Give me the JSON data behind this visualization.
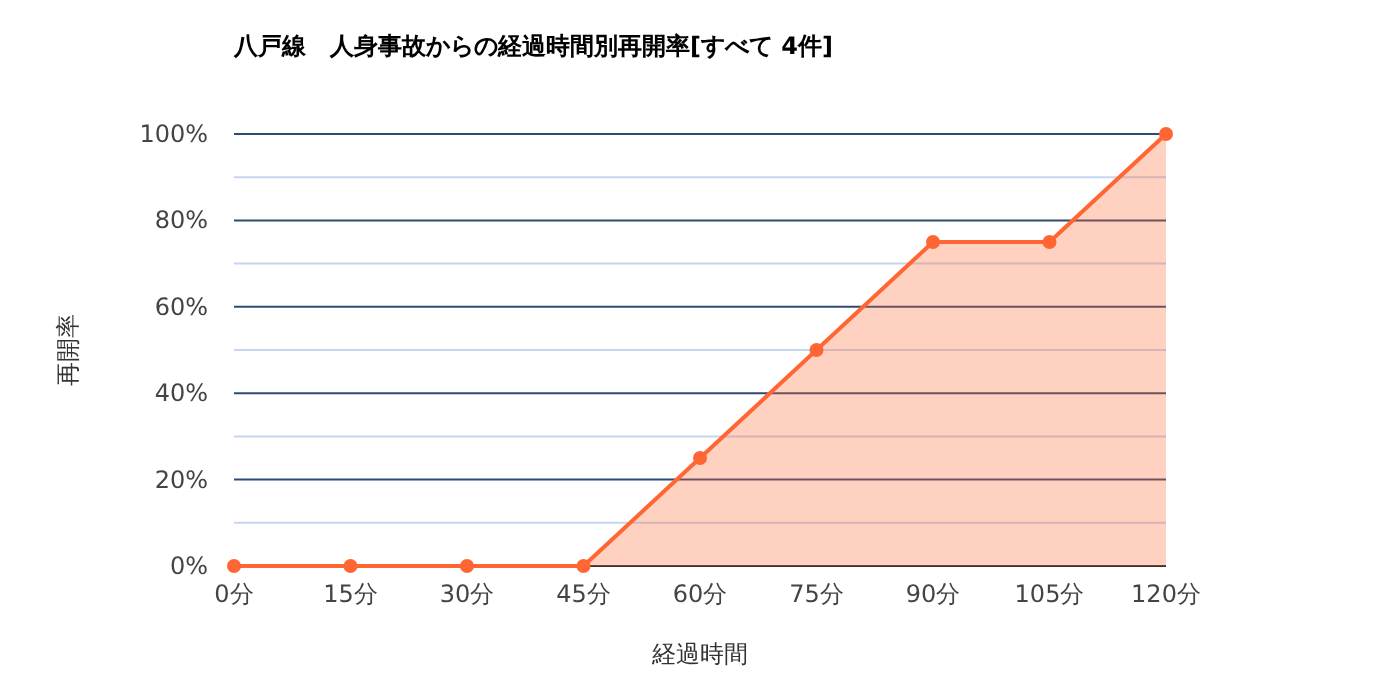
{
  "chart_data": {
    "type": "area",
    "title": "八戸線　人身事故からの経過時間別再開率[すべて 4件]",
    "xlabel": "経過時間",
    "ylabel": "再開率",
    "x": [
      0,
      15,
      30,
      45,
      60,
      75,
      90,
      105,
      120
    ],
    "series": [
      {
        "color": "#ff6633",
        "values": [
          0,
          0,
          0,
          0,
          25,
          50,
          75,
          75,
          100
        ]
      }
    ],
    "xlim": [
      0,
      120
    ],
    "xticks": [
      {
        "value": 0,
        "label": "0分"
      },
      {
        "value": 15,
        "label": "15分"
      },
      {
        "value": 30,
        "label": "30分"
      },
      {
        "value": 45,
        "label": "45分"
      },
      {
        "value": 60,
        "label": "60分"
      },
      {
        "value": 75,
        "label": "75分"
      },
      {
        "value": 90,
        "label": "90分"
      },
      {
        "value": 105,
        "label": "105分"
      },
      {
        "value": 120,
        "label": "120分"
      }
    ],
    "ylim": [
      0,
      100
    ],
    "yticks": [
      {
        "value": 0,
        "label": "0%"
      },
      {
        "value": 10,
        "label": null
      },
      {
        "value": 20,
        "label": "20%"
      },
      {
        "value": 30,
        "label": null
      },
      {
        "value": 40,
        "label": "40%"
      },
      {
        "value": 50,
        "label": null
      },
      {
        "value": 60,
        "label": "60%"
      },
      {
        "value": 70,
        "label": null
      },
      {
        "value": 80,
        "label": "80%"
      },
      {
        "value": 90,
        "label": null
      },
      {
        "value": 100,
        "label": "100%"
      }
    ],
    "grid": "y",
    "marker": "circle",
    "line_style": "solid"
  }
}
